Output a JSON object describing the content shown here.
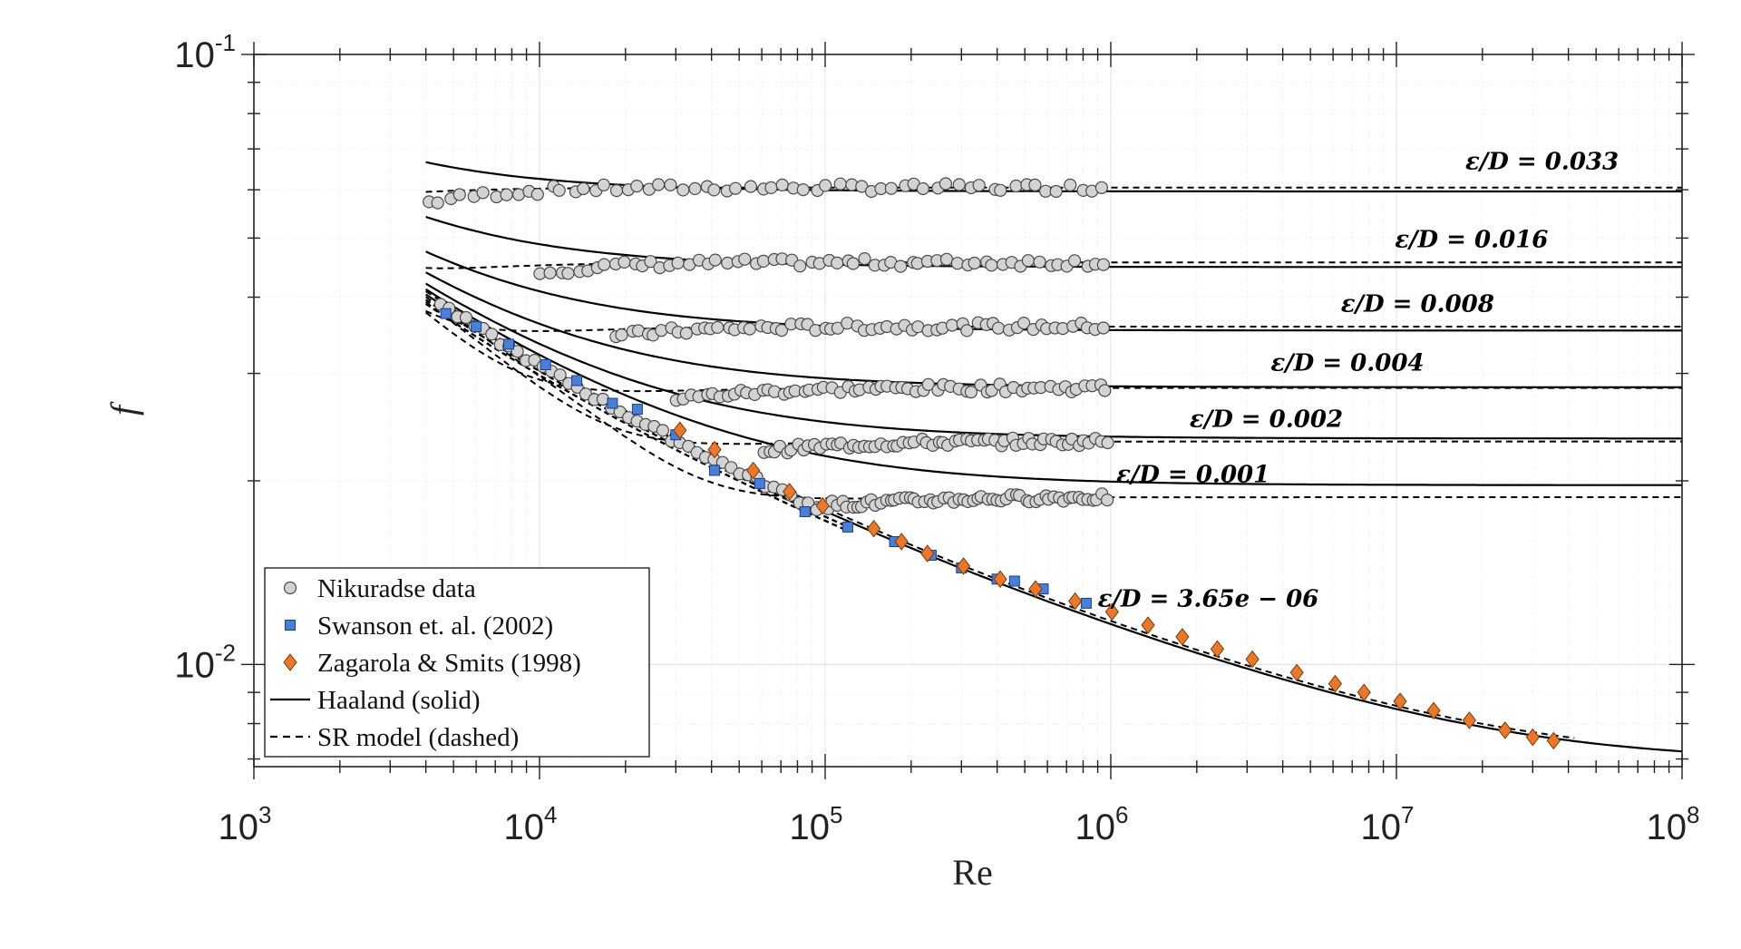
{
  "chart_data": {
    "type": "scatter",
    "title": "",
    "xlabel": "Re",
    "ylabel": "f",
    "x_scale": "log",
    "y_scale": "log",
    "xlim": [
      1000,
      100000000
    ],
    "ylim": [
      0.0068,
      0.1
    ],
    "grid": true,
    "legend_position": "bottom-left",
    "x_ticks": [
      {
        "base": "10",
        "exp": "3",
        "value": 1000
      },
      {
        "base": "10",
        "exp": "4",
        "value": 10000
      },
      {
        "base": "10",
        "exp": "5",
        "value": 100000
      },
      {
        "base": "10",
        "exp": "6",
        "value": 1000000
      },
      {
        "base": "10",
        "exp": "7",
        "value": 10000000
      },
      {
        "base": "10",
        "exp": "8",
        "value": 100000000
      }
    ],
    "y_ticks": [
      {
        "base": "10",
        "exp": "-1",
        "value": 0.1
      },
      {
        "base": "10",
        "exp": "-2",
        "value": 0.01
      }
    ],
    "legend": [
      {
        "label": "Nikuradse data",
        "marker": "circle",
        "color": "#d3d3d3"
      },
      {
        "label": "Swanson et. al. (2002)",
        "marker": "square",
        "color": "#4a7fd8"
      },
      {
        "label": "Zagarola & Smits (1998)",
        "marker": "diamond",
        "color": "#e8792c"
      },
      {
        "label": "Haaland (solid)",
        "marker": "solid-line",
        "color": "#000000"
      },
      {
        "label": "SR model (dashed)",
        "marker": "dashed-line",
        "color": "#000000"
      }
    ],
    "curve_params": {
      "re_min": 4000,
      "re_max": 100000000
    },
    "roughness_curves": [
      {
        "label": "ε/D = 0.033",
        "eps": 0.033,
        "sr_asymptote": 0.0605,
        "nik_xmin": 4000,
        "nik_plateau_re": 30000
      },
      {
        "label": "ε/D = 0.016",
        "eps": 0.016,
        "sr_asymptote": 0.0456,
        "nik_xmin": 10000,
        "nik_plateau_re": 55000
      },
      {
        "label": "ε/D = 0.008",
        "eps": 0.008,
        "sr_asymptote": 0.0358,
        "nik_xmin": 18000,
        "nik_plateau_re": 170000
      },
      {
        "label": "ε/D = 0.004",
        "eps": 0.004,
        "sr_asymptote": 0.0284,
        "nik_xmin": 30000,
        "nik_plateau_re": 300000
      },
      {
        "label": "ε/D = 0.002",
        "eps": 0.002,
        "sr_asymptote": 0.0232,
        "nik_xmin": 60000,
        "nik_plateau_re": 600000
      },
      {
        "label": "ε/D = 0.001",
        "eps": 0.001,
        "sr_asymptote": 0.0188,
        "nik_xmin": 90000,
        "nik_plateau_re": 900000
      }
    ],
    "smooth_curve": {
      "label": "ε/D = 3.65e − 06",
      "eps": 3.65e-06
    },
    "nikuradse_smooth_re_range": [
      4500,
      100000
    ],
    "swanson_data": [
      {
        "re": 4700,
        "f": 0.0376
      },
      {
        "re": 6000,
        "f": 0.0358
      },
      {
        "re": 7800,
        "f": 0.0335
      },
      {
        "re": 10500,
        "f": 0.031
      },
      {
        "re": 13500,
        "f": 0.0292
      },
      {
        "re": 18000,
        "f": 0.0268
      },
      {
        "re": 22000,
        "f": 0.0262
      },
      {
        "re": 30000,
        "f": 0.0238
      },
      {
        "re": 41000,
        "f": 0.0208
      },
      {
        "re": 59000,
        "f": 0.0198
      },
      {
        "re": 85000,
        "f": 0.0178
      },
      {
        "re": 120000,
        "f": 0.0168
      },
      {
        "re": 175000,
        "f": 0.0159
      },
      {
        "re": 235000,
        "f": 0.0151
      },
      {
        "re": 300000,
        "f": 0.0144
      },
      {
        "re": 400000,
        "f": 0.0138
      },
      {
        "re": 460000,
        "f": 0.0137
      },
      {
        "re": 580000,
        "f": 0.0133
      },
      {
        "re": 820000,
        "f": 0.0126
      }
    ],
    "zagarola_data": [
      {
        "re": 31000,
        "f": 0.0242
      },
      {
        "re": 41000,
        "f": 0.0225
      },
      {
        "re": 56000,
        "f": 0.0208
      },
      {
        "re": 75000,
        "f": 0.0192
      },
      {
        "re": 98000,
        "f": 0.0182
      },
      {
        "re": 148000,
        "f": 0.0167
      },
      {
        "re": 185000,
        "f": 0.0159
      },
      {
        "re": 228000,
        "f": 0.0152
      },
      {
        "re": 305000,
        "f": 0.0145
      },
      {
        "re": 410000,
        "f": 0.0138
      },
      {
        "re": 545000,
        "f": 0.0133
      },
      {
        "re": 750000,
        "f": 0.0127
      },
      {
        "re": 1010000,
        "f": 0.0122
      },
      {
        "re": 1350000,
        "f": 0.0116
      },
      {
        "re": 1780000,
        "f": 0.0111
      },
      {
        "re": 2360000,
        "f": 0.0106
      },
      {
        "re": 3130000,
        "f": 0.0102
      },
      {
        "re": 4480000,
        "f": 0.0097
      },
      {
        "re": 6100000,
        "f": 0.0093
      },
      {
        "re": 7700000,
        "f": 0.009
      },
      {
        "re": 10300000,
        "f": 0.0087
      },
      {
        "re": 13500000,
        "f": 0.0084
      },
      {
        "re": 18000000,
        "f": 0.0081
      },
      {
        "re": 24000000,
        "f": 0.0078
      },
      {
        "re": 30000000,
        "f": 0.0076
      },
      {
        "re": 35500000,
        "f": 0.0075
      }
    ]
  }
}
